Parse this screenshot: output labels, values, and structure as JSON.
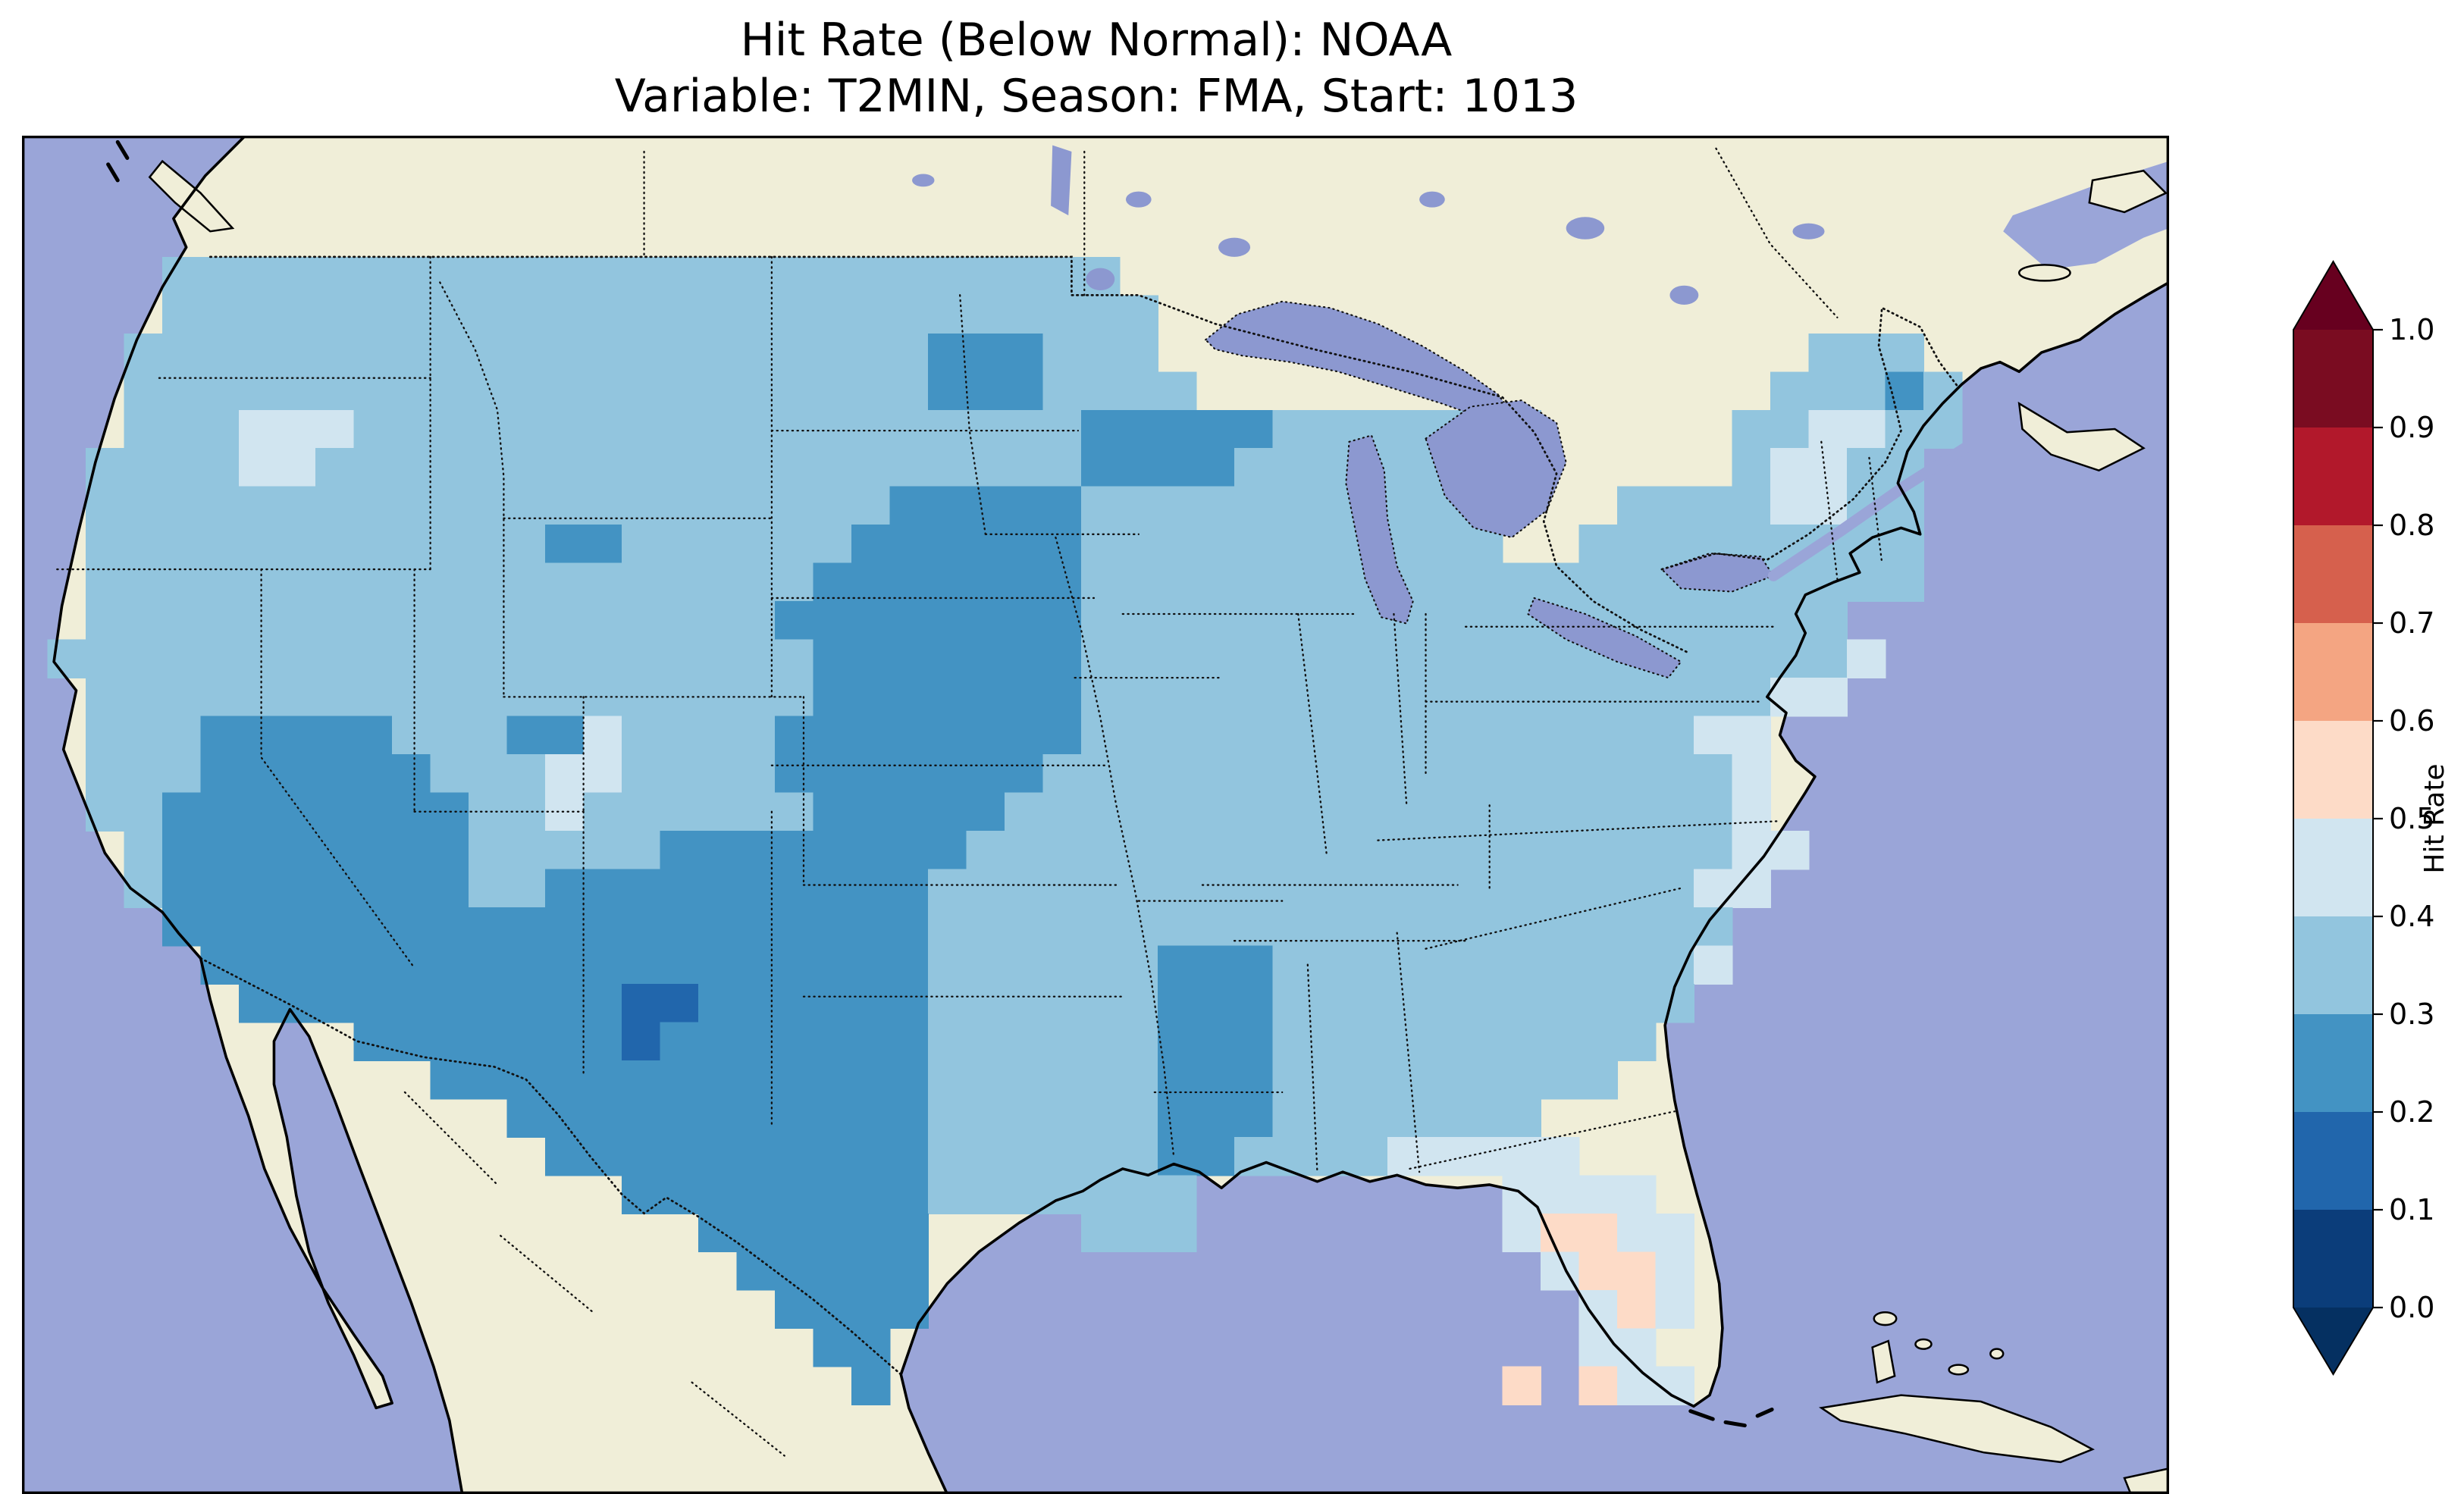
{
  "title": {
    "line1": "Hit Rate (Below Normal): NOAA",
    "line2": "Variable: T2MIN, Season: FMA, Start: 1013"
  },
  "colors": {
    "ocean": "#9aa5d8",
    "land": "#f0eed8",
    "lake": "#8c98d0",
    "frame": "#000000"
  },
  "colorbar": {
    "label": "Hit Rate",
    "tick_labels": [
      "1.0",
      "0.9",
      "0.8",
      "0.7",
      "0.6",
      "0.5",
      "0.4",
      "0.3",
      "0.2",
      "0.1",
      "0.0"
    ],
    "segments_top_to_bottom": [
      "#7a0c21",
      "#b2182b",
      "#d6604d",
      "#f4a582",
      "#fddbc7",
      "#d1e5f0",
      "#92c5de",
      "#4393c3",
      "#2166ac",
      "#0b3d7a"
    ],
    "over_color": "#67001f",
    "under_color": "#053061"
  },
  "chart_data": {
    "type": "heatmap",
    "title": "Hit Rate (Below Normal): NOAA",
    "subtitle": "Variable: T2MIN, Season: FMA, Start: 1013",
    "colorbar_label": "Hit Rate",
    "value_range": [
      0.0,
      1.0
    ],
    "bin_width": 0.1,
    "legend_position": "right",
    "palette": {
      "0": "#053061",
      "1": "#2166ac",
      "2": "#4393c3",
      "3": "#92c5de",
      "4": "#d1e5f0",
      "5": "#fddbc7",
      "6": "#f4a582",
      "7": "#d6604d",
      "8": "#b2182b",
      "9": "#67001f"
    },
    "grid_encoding": "rows of 50 cells over CONUS; '.' = no data, digit d = hit rate bin [d/10,(d+1)/10)",
    "grid": [
      "...3333333333333333333333333......................",
      "...33333333333333333333333333.....................",
      "..333333333333333333333222333.................333.",
      "..3333333333333333333332223333...............33323",
      "..3334443333333333333333333222223333333.....334433",
      ".3333443333333333333333333322223333333......34433.",
      ".3333333333333333333332222233333333333...33334433.",
      ".3333333333332233333322222233333333333..333333333.",
      ".333333333333333333322222223333333333333333333333..",
      ".3333333333333333332222222233333333333333333333...",
      "333333333333333333332222222333333333333333333334....",
      ".3333333333333333333222222233333333333333333344....",
      ".33322222333224333322222222333333333333333344.....",
      ".33322222233344333322222223333333333333333334.....",
      ".33222222223343333332222233333333333333333334.....",
      "..32222222233333222222223333333333333333333344....",
      "..3222222223322222222223333333333333333333344.....",
      "...22222222222222222222333333333333333333333......",
      "....2222222222222222222333333222333333333334......",
      ".....22222222221122222233333322233333333333.......",
      "........2222222122222223333332223333333333........",
      "..........2222222222222333333222333333333.........",
      "............222222222223333332223333333...........",
      ".............222222222233333322333344444..........",
      "...............222222223333333........4444........",
      ".................222222....333........45544.......",
      "..................22222................4554.......",
      "...................2222.................454.......",
      "....................22..................44........",
      ".....................2................5.544......."
    ]
  }
}
